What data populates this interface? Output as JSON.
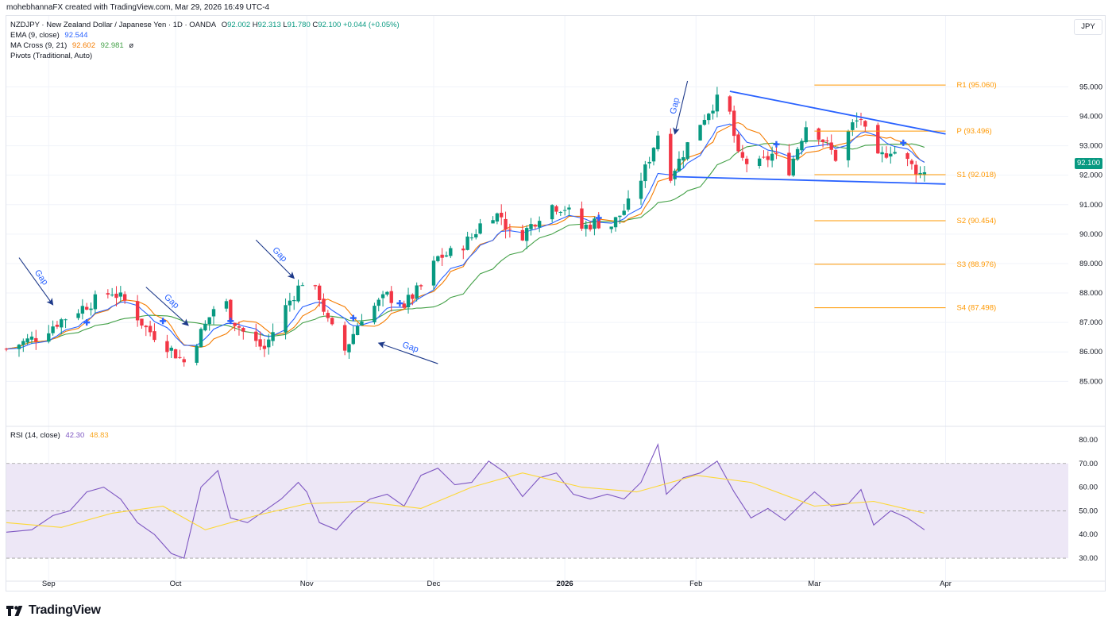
{
  "header": {
    "attribution": "mohebhannaFX created with TradingView.com, Mar 29, 2026 16:49 UTC-4"
  },
  "legend": {
    "symbol_line": "NZDJPY · New Zealand Dollar / Japanese Yen · 1D · OANDA",
    "ohlc": {
      "O": "92.002",
      "H": "92.313",
      "L": "91.780",
      "C": "92.100",
      "change": "+0.044 (+0.05%)"
    },
    "ema_label": "EMA (9, close)",
    "ema_value": "92.544",
    "ma_cross_label": "MA Cross (9, 21)",
    "ma_cross_v1": "92.602",
    "ma_cross_v2": "92.981",
    "ma_cross_suffix": "ø",
    "pivots_label": "Pivots (Traditional, Auto)",
    "rsi_label": "RSI (14, close)",
    "rsi_value": "42.30",
    "rsi_ma_value": "48.83"
  },
  "currency_button": "JPY",
  "last_price_tag": "92.100",
  "footer": {
    "brand": "TradingView"
  },
  "colors": {
    "up": "#089981",
    "down": "#f23645",
    "ema": "#2962ff",
    "ma_fast": "#f57c00",
    "ma_slow": "#43a047",
    "pivot": "#ff9800",
    "trendline": "#2962ff",
    "annotation": "#1e3a8a",
    "rsi_line": "#7e57c2",
    "rsi_ma": "#fdd835",
    "rsi_band": "#ede7f6"
  },
  "chart_data": [
    {
      "type": "candlestick",
      "title": "NZDJPY · New Zealand Dollar / Japanese Yen · 1D · OANDA",
      "ylim": [
        84.2,
        95.9
      ],
      "y_ticks": [
        "95.000",
        "94.000",
        "93.000",
        "92.000",
        "91.000",
        "90.000",
        "89.000",
        "88.000",
        "87.000",
        "86.000",
        "85.000"
      ],
      "x_ticks": [
        {
          "label": "Sep",
          "date": "2025-09-01"
        },
        {
          "label": "Oct",
          "date": "2025-10-01"
        },
        {
          "label": "Nov",
          "date": "2025-11-01"
        },
        {
          "label": "Dec",
          "date": "2025-12-01"
        },
        {
          "label": "2026",
          "date": "2026-01-01"
        },
        {
          "label": "Feb",
          "date": "2026-02-01"
        },
        {
          "label": "Mar",
          "date": "2026-03-01"
        },
        {
          "label": "Apr",
          "date": "2026-04-01"
        }
      ],
      "x_range": [
        "2025-08-22",
        "2026-04-30"
      ],
      "close_anchors": [
        [
          "2025-08-22",
          86.1
        ],
        [
          "2025-08-29",
          86.5
        ],
        [
          "2025-09-03",
          87.0
        ],
        [
          "2025-09-10",
          87.6
        ],
        [
          "2025-09-16",
          88.05
        ],
        [
          "2025-09-20",
          87.6
        ],
        [
          "2025-09-24",
          86.8
        ],
        [
          "2025-09-28",
          86.35
        ],
        [
          "2025-10-03",
          85.65
        ],
        [
          "2025-10-08",
          86.9
        ],
        [
          "2025-10-12",
          88.05
        ],
        [
          "2025-10-14",
          87.2
        ],
        [
          "2025-10-18",
          86.5
        ],
        [
          "2025-10-22",
          86.1
        ],
        [
          "2025-10-26",
          87.3
        ],
        [
          "2025-10-31",
          88.4
        ],
        [
          "2025-11-04",
          87.9
        ],
        [
          "2025-11-06",
          87.0
        ],
        [
          "2025-11-10",
          86.05
        ],
        [
          "2025-11-14",
          87.2
        ],
        [
          "2025-11-20",
          87.9
        ],
        [
          "2025-11-24",
          87.6
        ],
        [
          "2025-11-28",
          88.2
        ],
        [
          "2025-12-02",
          89.2
        ],
        [
          "2025-12-06",
          89.4
        ],
        [
          "2025-12-10",
          89.9
        ],
        [
          "2025-12-14",
          90.75
        ],
        [
          "2025-12-17",
          90.6
        ],
        [
          "2025-12-20",
          89.7
        ],
        [
          "2025-12-24",
          90.3
        ],
        [
          "2025-12-28",
          91.0
        ],
        [
          "2026-01-01",
          90.9
        ],
        [
          "2026-01-05",
          90.2
        ],
        [
          "2026-01-08",
          90.4
        ],
        [
          "2026-01-12",
          90.3
        ],
        [
          "2026-01-16",
          91.0
        ],
        [
          "2026-01-20",
          92.2
        ],
        [
          "2026-01-23",
          93.4
        ],
        [
          "2026-01-25",
          91.8
        ],
        [
          "2026-01-28",
          92.5
        ],
        [
          "2026-02-01",
          93.6
        ],
        [
          "2026-02-05",
          94.4
        ],
        [
          "2026-02-08",
          94.8
        ],
        [
          "2026-02-11",
          92.6
        ],
        [
          "2026-02-15",
          92.25
        ],
        [
          "2026-02-19",
          92.7
        ],
        [
          "2026-02-23",
          92.2
        ],
        [
          "2026-02-27",
          93.7
        ],
        [
          "2026-03-02",
          93.4
        ],
        [
          "2026-03-06",
          92.6
        ],
        [
          "2026-03-10",
          93.7
        ],
        [
          "2026-03-12",
          93.95
        ],
        [
          "2026-03-15",
          92.4
        ],
        [
          "2026-03-19",
          92.9
        ],
        [
          "2026-03-22",
          92.6
        ],
        [
          "2026-03-24",
          92.3
        ],
        [
          "2026-03-26",
          92.05
        ],
        [
          "2026-03-27",
          92.1
        ]
      ],
      "moving_averages": [
        "EMA (9, close)",
        "MA Cross (9, 21)"
      ],
      "pivots": [
        {
          "label": "R1 (95.060)",
          "value": 95.06
        },
        {
          "label": "P (93.496)",
          "value": 93.496
        },
        {
          "label": "S1 (92.018)",
          "value": 92.018
        },
        {
          "label": "S2 (90.454)",
          "value": 90.454
        },
        {
          "label": "S3 (88.976)",
          "value": 88.976
        },
        {
          "label": "S4 (87.498)",
          "value": 87.498
        }
      ],
      "pivot_start_date": "2026-03-01",
      "trendlines": [
        {
          "from": [
            "2026-02-09",
            94.85
          ],
          "to": [
            "2026-04-01",
            93.4
          ]
        },
        {
          "from": [
            "2026-01-27",
            91.95
          ],
          "to": [
            "2026-04-01",
            91.7
          ]
        }
      ],
      "cross_markers": [
        [
          "2025-09-10",
          87.0
        ],
        [
          "2025-09-28",
          87.05
        ],
        [
          "2025-10-14",
          87.05
        ],
        [
          "2025-11-12",
          87.15
        ],
        [
          "2025-11-23",
          87.65
        ],
        [
          "2026-01-09",
          90.55
        ],
        [
          "2026-02-20",
          93.05
        ],
        [
          "2026-03-22",
          93.1
        ]
      ],
      "annotations": [
        {
          "text": "Gap",
          "arrow_from": [
            "2025-08-25",
            89.2
          ],
          "arrow_to": [
            "2025-09-02",
            87.6
          ]
        },
        {
          "text": "Gap",
          "arrow_from": [
            "2025-09-24",
            88.2
          ],
          "arrow_to": [
            "2025-10-04",
            86.9
          ]
        },
        {
          "text": "Gap",
          "arrow_from": [
            "2025-10-20",
            89.8
          ],
          "arrow_to": [
            "2025-10-29",
            88.5
          ]
        },
        {
          "text": "Gap",
          "arrow_from": [
            "2025-12-02",
            85.6
          ],
          "arrow_to": [
            "2025-11-18",
            86.3
          ]
        },
        {
          "text": "Gap",
          "arrow_from": [
            "2026-01-30",
            95.2
          ],
          "arrow_to": [
            "2026-01-27",
            93.4
          ]
        }
      ]
    },
    {
      "type": "line",
      "title": "RSI (14, close)",
      "ylim": [
        27,
        82
      ],
      "y_ticks": [
        "80.00",
        "70.00",
        "60.00",
        "50.00",
        "40.00",
        "30.00"
      ],
      "bands": {
        "upper": 70,
        "middle": 50,
        "lower": 30
      },
      "series": [
        {
          "name": "RSI",
          "points": [
            [
              "2025-08-22",
              41
            ],
            [
              "2025-08-28",
              42
            ],
            [
              "2025-09-02",
              48
            ],
            [
              "2025-09-06",
              50
            ],
            [
              "2025-09-10",
              58
            ],
            [
              "2025-09-14",
              60
            ],
            [
              "2025-09-18",
              55
            ],
            [
              "2025-09-22",
              45
            ],
            [
              "2025-09-26",
              40
            ],
            [
              "2025-09-30",
              32
            ],
            [
              "2025-10-03",
              30
            ],
            [
              "2025-10-07",
              60
            ],
            [
              "2025-10-11",
              67
            ],
            [
              "2025-10-14",
              47
            ],
            [
              "2025-10-18",
              45
            ],
            [
              "2025-10-22",
              50
            ],
            [
              "2025-10-26",
              55
            ],
            [
              "2025-10-30",
              62
            ],
            [
              "2025-11-01",
              58
            ],
            [
              "2025-11-04",
              45
            ],
            [
              "2025-11-08",
              42
            ],
            [
              "2025-11-12",
              50
            ],
            [
              "2025-11-16",
              55
            ],
            [
              "2025-11-20",
              57
            ],
            [
              "2025-11-24",
              52
            ],
            [
              "2025-11-28",
              65
            ],
            [
              "2025-12-02",
              68
            ],
            [
              "2025-12-06",
              61
            ],
            [
              "2025-12-10",
              62
            ],
            [
              "2025-12-14",
              71
            ],
            [
              "2025-12-18",
              66
            ],
            [
              "2025-12-22",
              56
            ],
            [
              "2025-12-26",
              64
            ],
            [
              "2025-12-30",
              66
            ],
            [
              "2026-01-03",
              57
            ],
            [
              "2026-01-07",
              55
            ],
            [
              "2026-01-11",
              57
            ],
            [
              "2026-01-15",
              55
            ],
            [
              "2026-01-19",
              62
            ],
            [
              "2026-01-23",
              78
            ],
            [
              "2026-01-25",
              57
            ],
            [
              "2026-01-29",
              64
            ],
            [
              "2026-02-02",
              66
            ],
            [
              "2026-02-06",
              71
            ],
            [
              "2026-02-10",
              58
            ],
            [
              "2026-02-14",
              47
            ],
            [
              "2026-02-18",
              51
            ],
            [
              "2026-02-22",
              46
            ],
            [
              "2026-02-26",
              53
            ],
            [
              "2026-03-01",
              58
            ],
            [
              "2026-03-05",
              52
            ],
            [
              "2026-03-09",
              53
            ],
            [
              "2026-03-12",
              59
            ],
            [
              "2026-03-15",
              44
            ],
            [
              "2026-03-19",
              50
            ],
            [
              "2026-03-23",
              47
            ],
            [
              "2026-03-27",
              42
            ]
          ]
        },
        {
          "name": "RSI MA",
          "points": [
            [
              "2025-08-22",
              45
            ],
            [
              "2025-09-04",
              43
            ],
            [
              "2025-09-16",
              49
            ],
            [
              "2025-09-28",
              52
            ],
            [
              "2025-10-08",
              42
            ],
            [
              "2025-10-20",
              48
            ],
            [
              "2025-11-01",
              53
            ],
            [
              "2025-11-14",
              54
            ],
            [
              "2025-11-28",
              51
            ],
            [
              "2025-12-10",
              60
            ],
            [
              "2025-12-22",
              66
            ],
            [
              "2026-01-05",
              60
            ],
            [
              "2026-01-18",
              58
            ],
            [
              "2026-02-01",
              65
            ],
            [
              "2026-02-14",
              62
            ],
            [
              "2026-03-01",
              52
            ],
            [
              "2026-03-15",
              54
            ],
            [
              "2026-03-27",
              49
            ]
          ]
        }
      ]
    }
  ]
}
